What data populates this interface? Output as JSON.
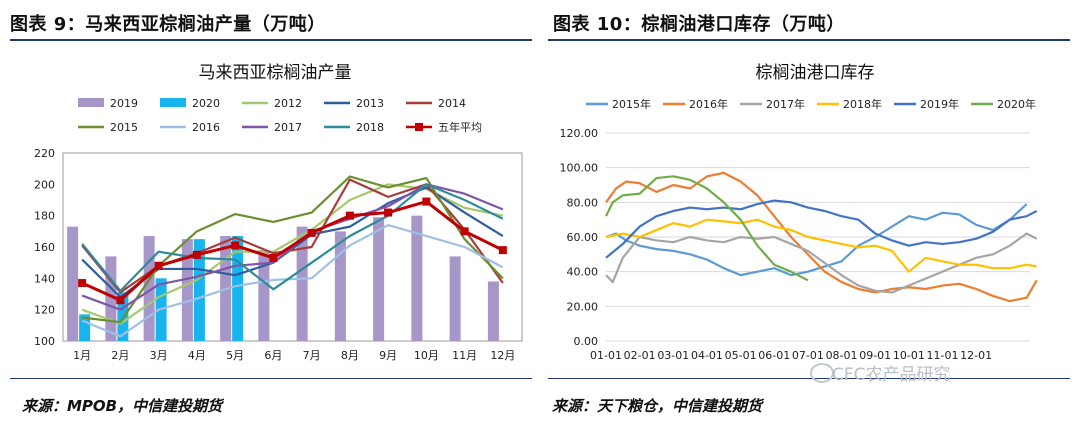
{
  "left": {
    "panel_title": "图表 9：马来西亚棕榈油产量（万吨）",
    "source": "来源：MPOB，中信建投期货"
  },
  "right": {
    "panel_title": "图表 10：棕榈油港口库存（万吨）",
    "source": "来源：天下粮仓，中信建投期货"
  },
  "watermark": "CFC农产品研究",
  "chart_data": [
    {
      "type": "bar",
      "title": "马来西亚棕榈油产量",
      "categories": [
        "1月",
        "2月",
        "3月",
        "4月",
        "5月",
        "6月",
        "7月",
        "8月",
        "9月",
        "10月",
        "11月",
        "12月"
      ],
      "ylim": [
        100,
        220
      ],
      "yticks": [
        100,
        120,
        140,
        160,
        180,
        200,
        220
      ],
      "grid": false,
      "legend_position": "top",
      "bar_series": [
        {
          "name": "2019",
          "color": "#a797c8",
          "values": [
            173,
            154,
            167,
            165,
            167,
            158,
            173,
            170,
            179,
            180,
            154,
            138
          ]
        },
        {
          "name": "2020",
          "color": "#18b4ee",
          "values": [
            117,
            131,
            140,
            165,
            167,
            null,
            null,
            null,
            null,
            null,
            null,
            null
          ]
        }
      ],
      "line_series": [
        {
          "name": "2012",
          "color": "#a5c86b",
          "values": [
            120,
            111,
            128,
            139,
            157,
            157,
            171,
            190,
            200,
            197,
            185,
            180
          ]
        },
        {
          "name": "2013",
          "color": "#2f5e9e",
          "values": [
            152,
            128,
            146,
            146,
            142,
            150,
            168,
            173,
            188,
            198,
            182,
            167
          ]
        },
        {
          "name": "2014",
          "color": "#a83c3c",
          "values": [
            161,
            131,
            148,
            156,
            166,
            156,
            160,
            203,
            192,
            200,
            171,
            137
          ]
        },
        {
          "name": "2015",
          "color": "#6b8e2f",
          "values": [
            115,
            112,
            148,
            170,
            181,
            176,
            182,
            205,
            198,
            204,
            165,
            140
          ]
        },
        {
          "name": "2016",
          "color": "#9fc0e6",
          "values": [
            113,
            103,
            120,
            127,
            135,
            139,
            140,
            161,
            174,
            167,
            160,
            147
          ]
        },
        {
          "name": "2017",
          "color": "#7d56a8",
          "values": [
            129,
            120,
            136,
            141,
            148,
            150,
            170,
            178,
            186,
            200,
            194,
            184
          ]
        },
        {
          "name": "2018",
          "color": "#2e8b9a",
          "values": [
            162,
            132,
            157,
            153,
            152,
            133,
            150,
            167,
            180,
            200,
            190,
            178
          ]
        },
        {
          "name": "五年平均",
          "color": "#c00000",
          "marker": "square",
          "values": [
            137,
            126,
            148,
            155,
            161,
            153,
            169,
            180,
            182,
            189,
            170,
            158
          ]
        }
      ]
    },
    {
      "type": "line",
      "title": "棕榈油港口库存",
      "x_ticks": [
        "01-01",
        "02-01",
        "03-01",
        "04-01",
        "05-01",
        "06-01",
        "07-01",
        "08-01",
        "09-01",
        "10-01",
        "11-01",
        "12-01"
      ],
      "ylim": [
        0,
        120
      ],
      "yticks": [
        "0.00",
        "20.00",
        "40.00",
        "60.00",
        "80.00",
        "100.00",
        "120.00"
      ],
      "grid": true,
      "legend_position": "top",
      "series": [
        {
          "name": "2015年",
          "color": "#5b9bd5",
          "x": [
            0,
            0.3,
            0.6,
            1,
            1.5,
            2,
            2.5,
            3,
            3.5,
            4,
            4.5,
            5,
            5.5,
            6,
            6.5,
            7,
            7.5,
            8,
            8.5,
            9,
            9.5,
            10,
            10.5,
            11,
            11.5,
            12,
            12.5
          ],
          "y": [
            60,
            62,
            58,
            55,
            53,
            52,
            50,
            47,
            42,
            38,
            40,
            42,
            38,
            40,
            43,
            46,
            55,
            60,
            66,
            72,
            70,
            74,
            73,
            67,
            64,
            70,
            79
          ]
        },
        {
          "name": "2016年",
          "color": "#ed7d31",
          "x": [
            0,
            0.3,
            0.6,
            1,
            1.5,
            2,
            2.5,
            3,
            3.5,
            4,
            4.5,
            5,
            5.5,
            6,
            6.5,
            7,
            7.5,
            8,
            8.5,
            9,
            9.5,
            10,
            10.5,
            11,
            11.5,
            12,
            12.5,
            12.8
          ],
          "y": [
            80,
            88,
            92,
            91,
            86,
            90,
            88,
            95,
            97,
            92,
            84,
            72,
            60,
            50,
            40,
            34,
            30,
            28,
            30,
            31,
            30,
            32,
            33,
            30,
            26,
            23,
            25,
            35
          ]
        },
        {
          "name": "2017年",
          "color": "#a5a5a5",
          "x": [
            0,
            0.2,
            0.5,
            1,
            1.5,
            2,
            2.5,
            3,
            3.5,
            4,
            4.5,
            5,
            5.5,
            6,
            6.5,
            7,
            7.5,
            8,
            8.5,
            9,
            9.5,
            10,
            10.5,
            11,
            11.5,
            12,
            12.5,
            12.8
          ],
          "y": [
            38,
            34,
            48,
            60,
            58,
            57,
            60,
            58,
            57,
            60,
            59,
            60,
            56,
            52,
            45,
            38,
            32,
            29,
            28,
            32,
            36,
            40,
            44,
            48,
            50,
            55,
            62,
            59
          ]
        },
        {
          "name": "2018年",
          "color": "#ffc000",
          "x": [
            0,
            0.5,
            1,
            1.5,
            2,
            2.5,
            3,
            3.5,
            4,
            4.5,
            5,
            5.5,
            6,
            6.5,
            7,
            7.5,
            8,
            8.5,
            9,
            9.5,
            10,
            10.5,
            11,
            11.5,
            12,
            12.5,
            12.8
          ],
          "y": [
            60,
            62,
            60,
            64,
            68,
            66,
            70,
            69,
            68,
            70,
            66,
            64,
            60,
            58,
            56,
            54,
            55,
            52,
            40,
            48,
            46,
            44,
            44,
            42,
            42,
            44,
            43
          ]
        },
        {
          "name": "2019年",
          "color": "#4472c4",
          "x": [
            0,
            0.5,
            1,
            1.5,
            2,
            2.5,
            3,
            3.5,
            4,
            4.5,
            5,
            5.5,
            6,
            6.5,
            7,
            7.5,
            8,
            8.5,
            9,
            9.5,
            10,
            10.5,
            11,
            11.5,
            12,
            12.5,
            12.8
          ],
          "y": [
            48,
            56,
            66,
            72,
            75,
            77,
            76,
            77,
            76,
            79,
            81,
            80,
            77,
            75,
            72,
            70,
            62,
            58,
            55,
            57,
            56,
            57,
            59,
            63,
            70,
            72,
            75
          ]
        },
        {
          "name": "2020年",
          "color": "#70ad47",
          "x": [
            0,
            0.2,
            0.5,
            1,
            1.5,
            2,
            2.5,
            3,
            3.5,
            4,
            4.5,
            5,
            5.5,
            6
          ],
          "y": [
            72,
            80,
            84,
            85,
            94,
            95,
            93,
            88,
            80,
            70,
            55,
            44,
            40,
            35
          ]
        }
      ]
    }
  ]
}
